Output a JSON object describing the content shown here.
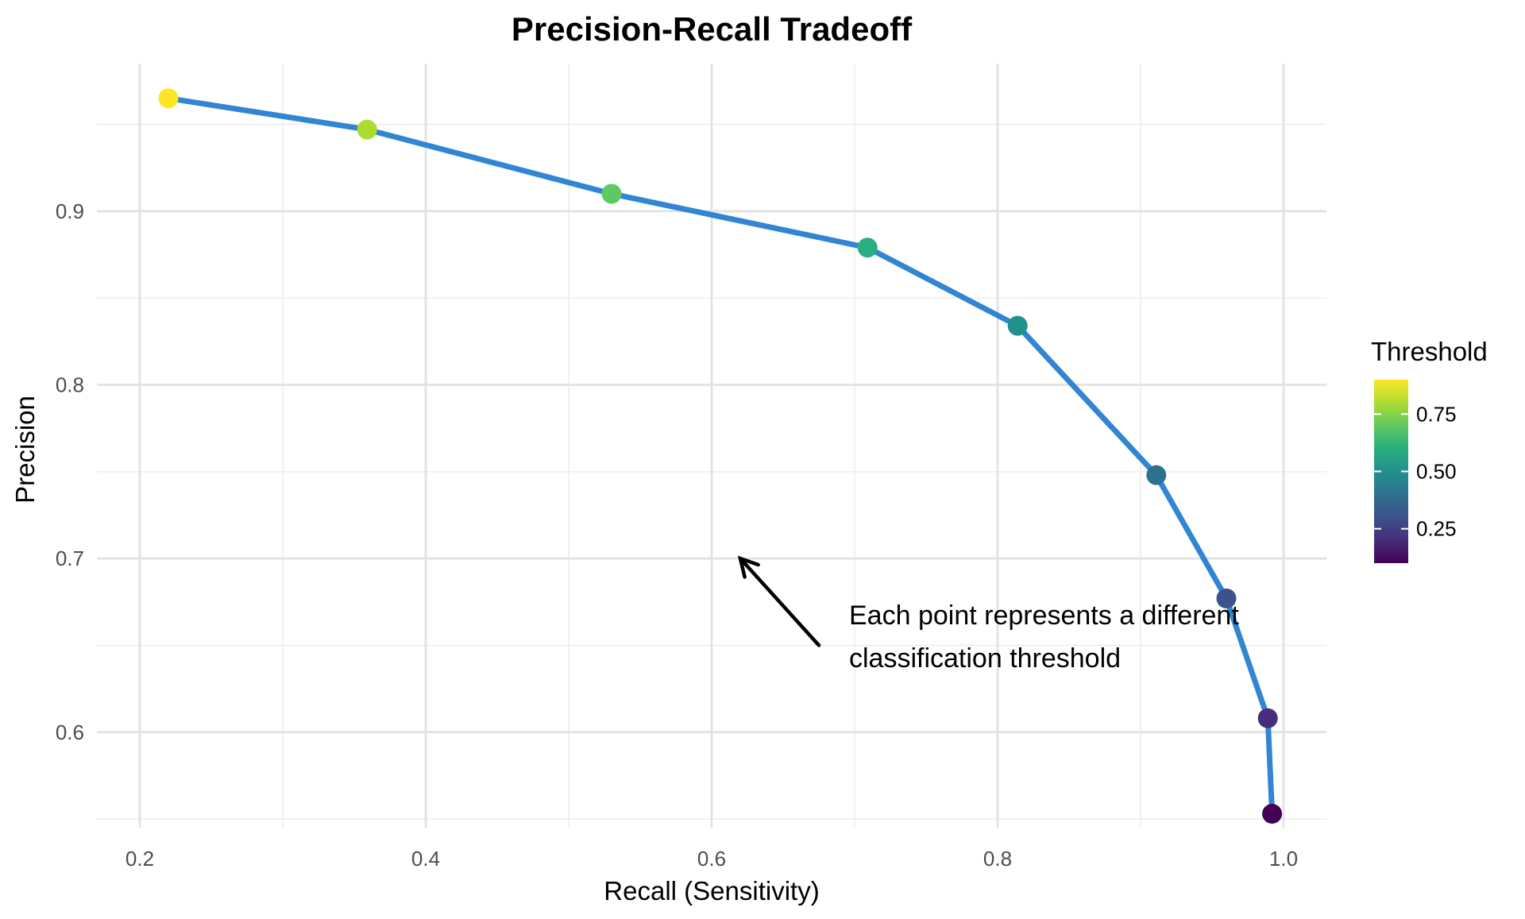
{
  "chart_data": {
    "type": "line",
    "title": "Precision-Recall Tradeoff",
    "xlabel": "Recall (Sensitivity)",
    "ylabel": "Precision",
    "xlim": [
      0.17,
      1.03
    ],
    "ylim": [
      0.545,
      0.985
    ],
    "x_ticks": [
      0.2,
      0.4,
      0.6,
      0.8,
      1.0
    ],
    "x_tick_labels": [
      "0.2",
      "0.4",
      "0.6",
      "0.8",
      "1.0"
    ],
    "y_ticks": [
      0.6,
      0.7,
      0.8,
      0.9
    ],
    "y_tick_labels": [
      "0.6",
      "0.7",
      "0.8",
      "0.9"
    ],
    "grid": true,
    "line_color": "#3185d2",
    "points": [
      {
        "recall": 0.22,
        "precision": 0.965,
        "threshold": 0.9
      },
      {
        "recall": 0.359,
        "precision": 0.947,
        "threshold": 0.8
      },
      {
        "recall": 0.53,
        "precision": 0.91,
        "threshold": 0.7
      },
      {
        "recall": 0.709,
        "precision": 0.879,
        "threshold": 0.6
      },
      {
        "recall": 0.814,
        "precision": 0.834,
        "threshold": 0.5
      },
      {
        "recall": 0.911,
        "precision": 0.748,
        "threshold": 0.4
      },
      {
        "recall": 0.96,
        "precision": 0.677,
        "threshold": 0.3
      },
      {
        "recall": 0.989,
        "precision": 0.608,
        "threshold": 0.2
      },
      {
        "recall": 0.992,
        "precision": 0.553,
        "threshold": 0.1
      }
    ],
    "legend": {
      "title": "Threshold",
      "position": "right",
      "range": [
        0.1,
        0.9
      ],
      "ticks": [
        0.25,
        0.5,
        0.75
      ],
      "tick_labels": [
        "0.25",
        "0.50",
        "0.75"
      ],
      "colormap": "viridis"
    },
    "annotation": {
      "lines": [
        "Each point represents a different",
        "classification threshold"
      ],
      "arrow_from": [
        0.675,
        0.65
      ],
      "arrow_to": [
        0.62,
        0.7
      ]
    }
  }
}
